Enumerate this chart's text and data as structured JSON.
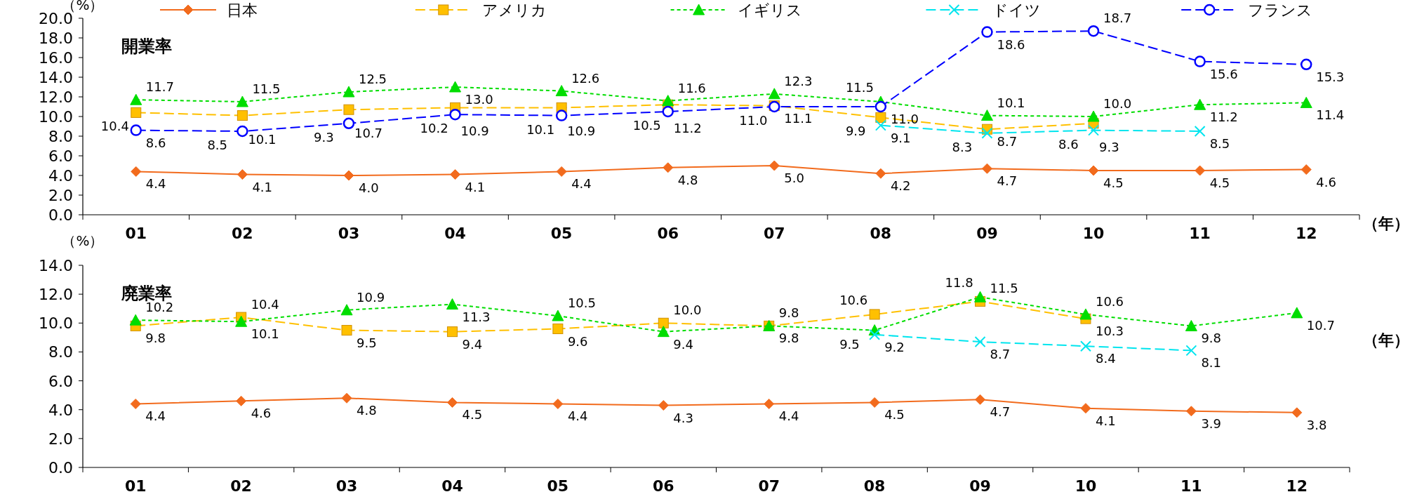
{
  "chart_data": [
    {
      "type": "line",
      "title": "開業率",
      "ylabel": "（%）",
      "xlabel": "（年）",
      "categories": [
        "01",
        "02",
        "03",
        "04",
        "05",
        "06",
        "07",
        "08",
        "09",
        "10",
        "11",
        "12"
      ],
      "ylim": [
        0,
        20
      ],
      "yticks": [
        {
          "value": 0,
          "label": "0.0"
        },
        {
          "value": 2,
          "label": "2.0"
        },
        {
          "value": 4,
          "label": "4.0"
        },
        {
          "value": 6,
          "label": "6.0"
        },
        {
          "value": 8,
          "label": "8.0"
        },
        {
          "value": 10,
          "label": "10.0"
        },
        {
          "value": 12,
          "label": "12.0"
        },
        {
          "value": 14,
          "label": "14.0"
        },
        {
          "value": 16,
          "label": "16.0"
        },
        {
          "value": 18,
          "label": "18.0"
        },
        {
          "value": 20,
          "label": "20.0"
        }
      ],
      "legend": "top",
      "grid": false,
      "series": [
        {
          "name": "日本",
          "color": "#f26b1d",
          "marker": "diamond",
          "line_style": "solid",
          "values": [
            4.4,
            4.1,
            4.0,
            4.1,
            4.4,
            4.8,
            5.0,
            4.2,
            4.7,
            4.5,
            4.5,
            4.6
          ],
          "value_labels": [
            "4.4",
            "4.1",
            "4.0",
            "4.1",
            "4.4",
            "4.8",
            "5.0",
            "4.2",
            "4.7",
            "4.5",
            "4.5",
            "4.6"
          ]
        },
        {
          "name": "アメリカ",
          "color": "#ffc000",
          "marker": "square",
          "line_style": "dashed",
          "values": [
            10.4,
            10.1,
            10.7,
            10.9,
            10.9,
            11.2,
            11.1,
            9.9,
            8.7,
            9.3,
            null,
            null
          ],
          "value_labels": [
            "10.4",
            "10.1",
            "10.7",
            "10.9",
            "10.9",
            "11.2",
            "11.1",
            "9.9",
            "8.7",
            "9.3",
            null,
            null
          ]
        },
        {
          "name": "イギリス",
          "color": "#00dd00",
          "marker": "triangle",
          "line_style": "dotted",
          "values": [
            11.7,
            11.5,
            12.5,
            13.0,
            12.6,
            11.6,
            12.3,
            11.5,
            10.1,
            10.0,
            11.2,
            11.4
          ],
          "value_labels": [
            "11.7",
            "11.5",
            "12.5",
            "13.0",
            "12.6",
            "11.6",
            "12.3",
            "11.5",
            "10.1",
            "10.0",
            "11.2",
            "11.4"
          ]
        },
        {
          "name": "ドイツ",
          "color": "#00e5ee",
          "marker": "cross",
          "line_style": "dashed",
          "values": [
            null,
            null,
            null,
            null,
            null,
            null,
            null,
            9.1,
            8.3,
            8.6,
            8.5,
            null
          ],
          "value_labels": [
            null,
            null,
            null,
            null,
            null,
            null,
            null,
            "9.1",
            "8.3",
            "8.6",
            "8.5",
            null
          ]
        },
        {
          "name": "フランス",
          "color": "#0000ff",
          "marker": "circle",
          "line_style": "dashed",
          "values": [
            8.6,
            8.5,
            9.3,
            10.2,
            10.1,
            10.5,
            11.0,
            11.0,
            18.6,
            18.7,
            15.6,
            15.3
          ],
          "value_labels": [
            "8.6",
            "8.5",
            "9.3",
            "10.2",
            "10.1",
            "10.5",
            "11.0",
            "11.0",
            "18.6",
            "18.7",
            "15.6",
            "15.3"
          ]
        }
      ]
    },
    {
      "type": "line",
      "title": "廃業率",
      "ylabel": "（%）",
      "xlabel": "（年）",
      "categories": [
        "01",
        "02",
        "03",
        "04",
        "05",
        "06",
        "07",
        "08",
        "09",
        "10",
        "11",
        "12"
      ],
      "ylim": [
        0,
        14
      ],
      "yticks": [
        {
          "value": 0,
          "label": "0.0"
        },
        {
          "value": 2,
          "label": "2.0"
        },
        {
          "value": 4,
          "label": "4.0"
        },
        {
          "value": 6,
          "label": "6.0"
        },
        {
          "value": 8,
          "label": "8.0"
        },
        {
          "value": 10,
          "label": "10.0"
        },
        {
          "value": 12,
          "label": "12.0"
        },
        {
          "value": 14,
          "label": "14.0"
        }
      ],
      "grid": false,
      "series": [
        {
          "color": "#f26b1d",
          "marker": "diamond",
          "line_style": "solid",
          "values": [
            4.4,
            4.6,
            4.8,
            4.5,
            4.4,
            4.3,
            4.4,
            4.5,
            4.7,
            4.1,
            3.9,
            3.8
          ],
          "value_labels": [
            "4.4",
            "4.6",
            "4.8",
            "4.5",
            "4.4",
            "4.3",
            "4.4",
            "4.5",
            "4.7",
            "4.1",
            "3.9",
            "3.8"
          ]
        },
        {
          "color": "#ffc000",
          "marker": "square",
          "line_style": "dashed",
          "values": [
            9.8,
            10.4,
            9.5,
            9.4,
            9.6,
            10.0,
            9.8,
            10.6,
            11.5,
            10.3,
            null,
            null
          ],
          "value_labels": [
            "9.8",
            "10.4",
            "9.5",
            "9.4",
            "9.6",
            "10.0",
            "9.8",
            "10.6",
            "11.5",
            "10.3",
            null,
            null
          ]
        },
        {
          "color": "#00dd00",
          "marker": "triangle",
          "line_style": "dotted",
          "values": [
            10.2,
            10.1,
            10.9,
            11.3,
            10.5,
            9.4,
            9.8,
            9.5,
            11.8,
            10.6,
            9.8,
            10.7
          ],
          "value_labels": [
            "10.2",
            "10.1",
            "10.9",
            "11.3",
            "10.5",
            "9.4",
            "9.8",
            "9.5",
            "11.8",
            "10.6",
            "9.8",
            "10.7"
          ]
        },
        {
          "color": "#00e5ee",
          "marker": "cross",
          "line_style": "dashed",
          "values": [
            null,
            null,
            null,
            null,
            null,
            null,
            null,
            9.2,
            8.7,
            8.4,
            8.1,
            null
          ],
          "value_labels": [
            null,
            null,
            null,
            null,
            null,
            null,
            null,
            "9.2",
            "8.7",
            "8.4",
            "8.1",
            null
          ]
        }
      ]
    }
  ]
}
